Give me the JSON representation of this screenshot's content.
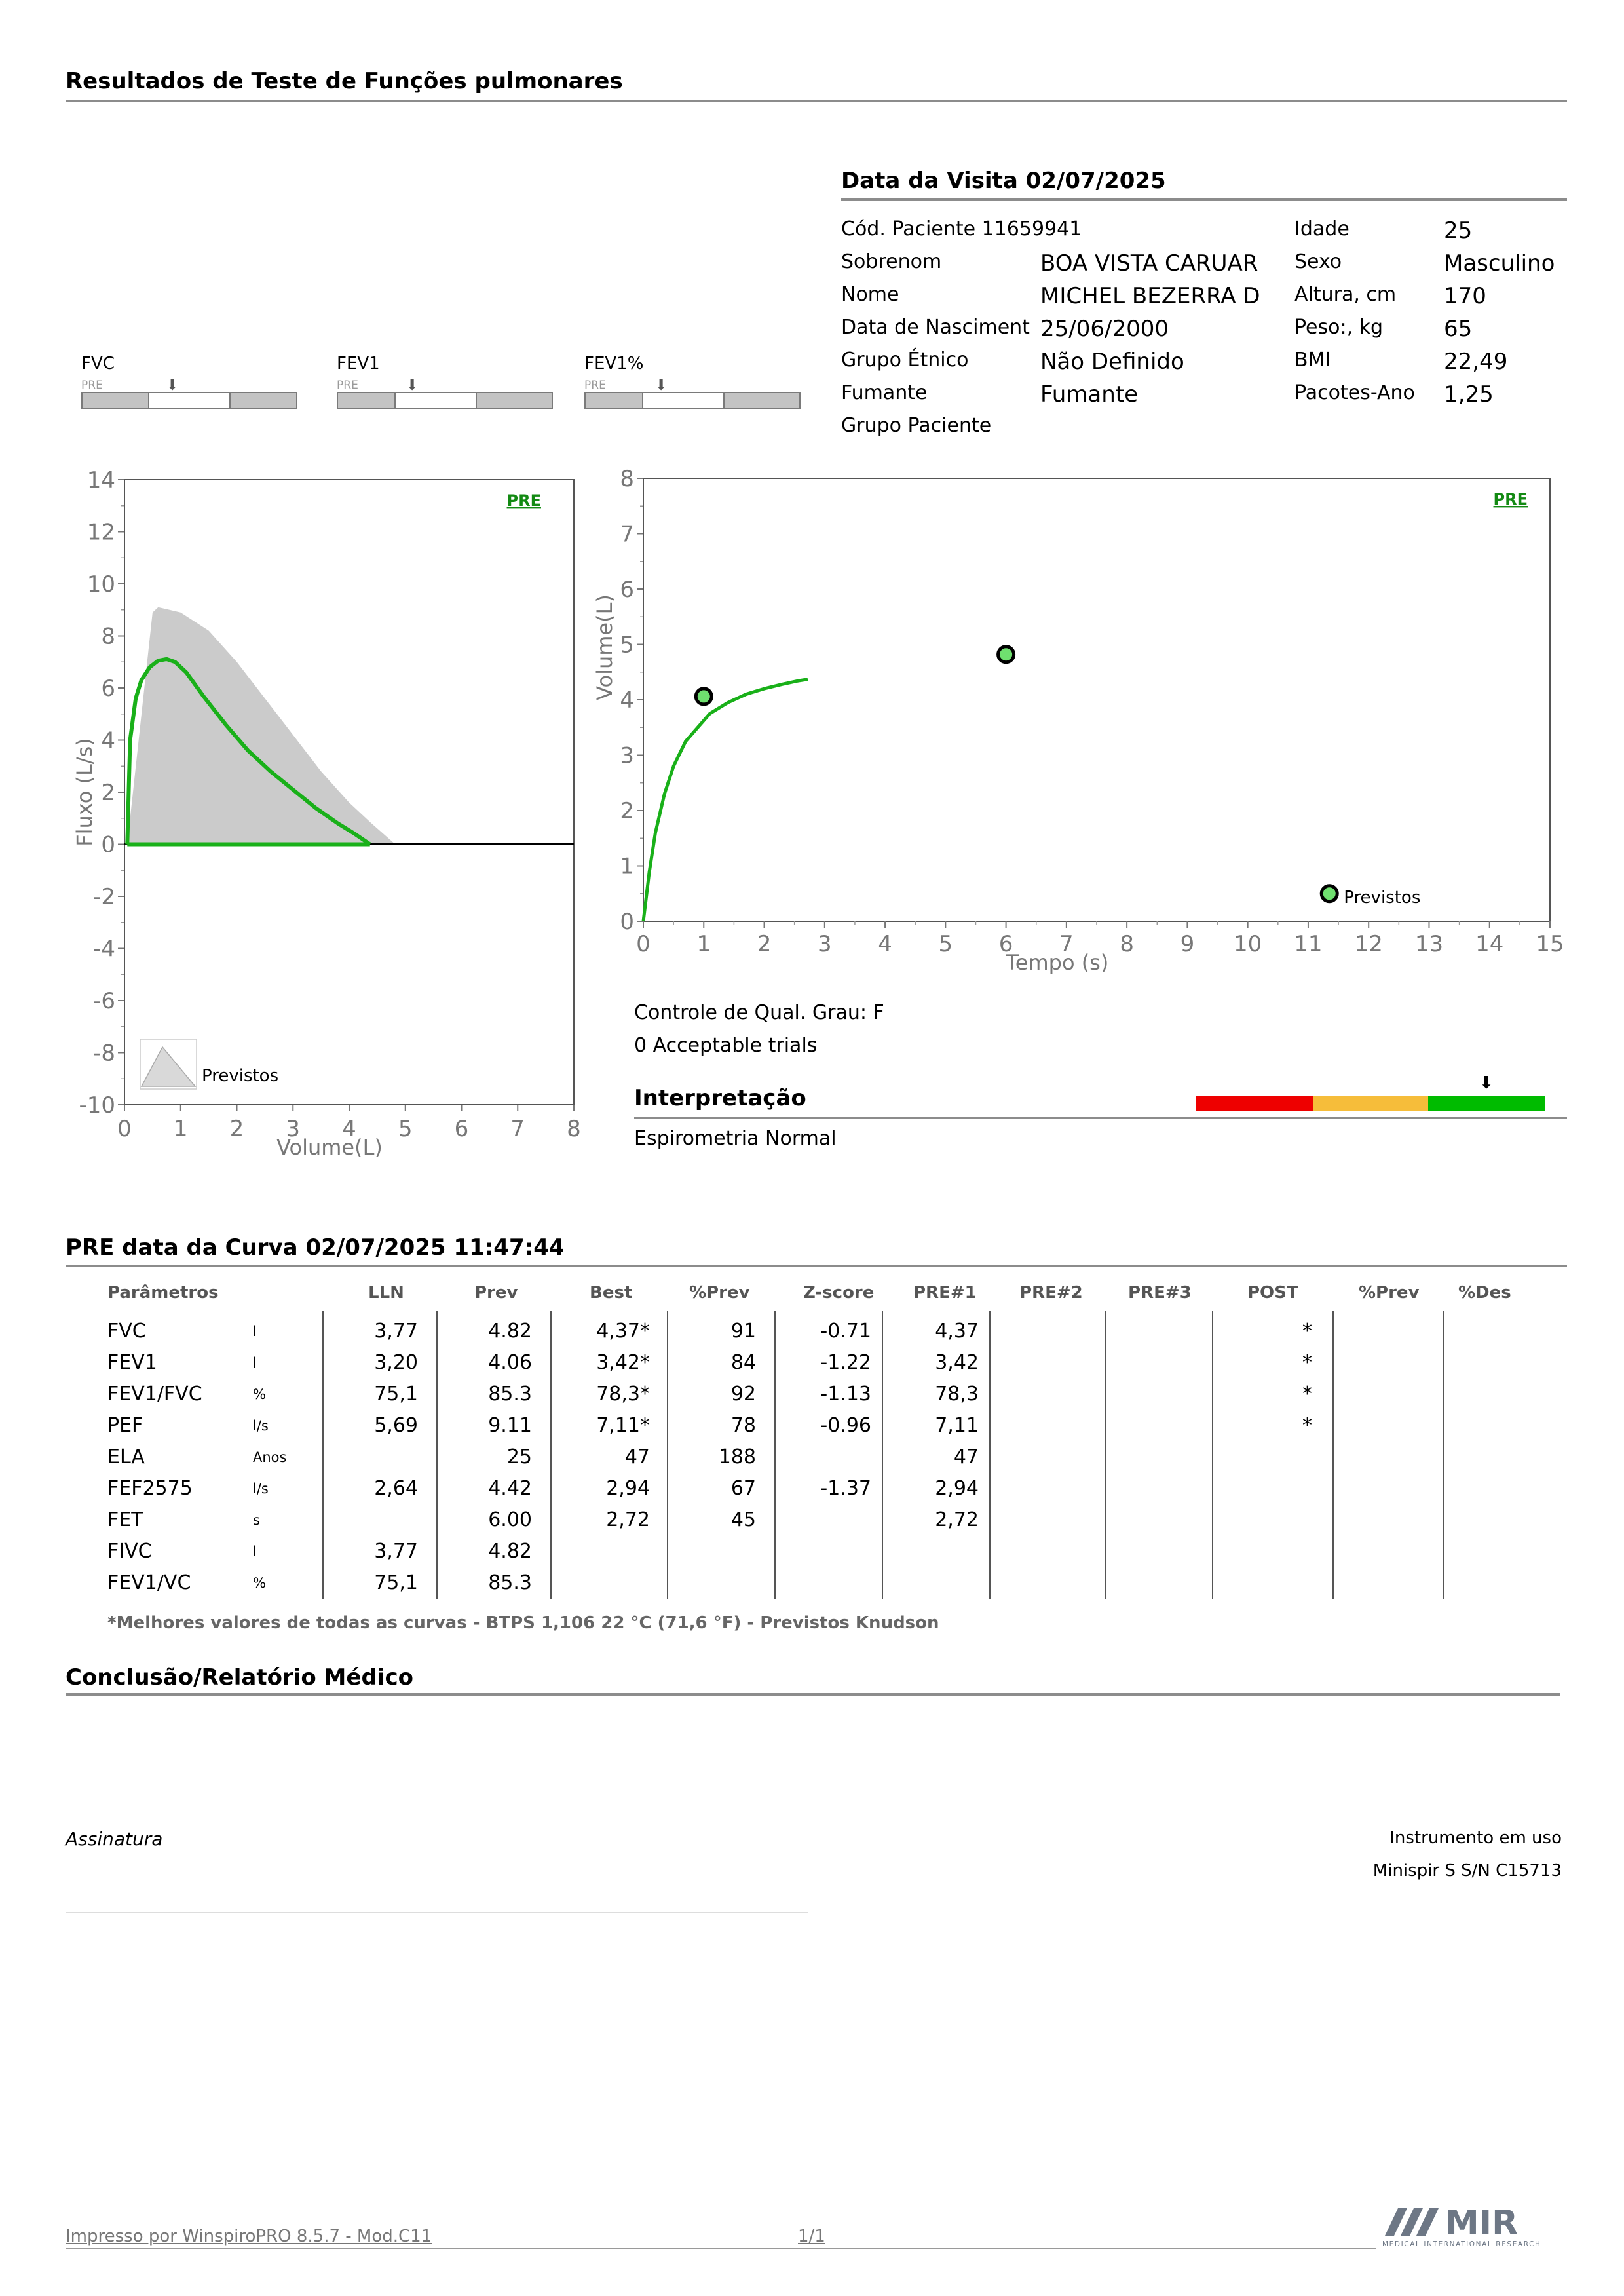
{
  "page_title": "Resultados de Teste de Funções pulmonares",
  "visit": {
    "title": "Data da Visita 02/07/2025",
    "patient_code": "Cód. Paciente 11659941",
    "rows": [
      {
        "label": "Sobrenom",
        "value": "BOA VISTA CARUAR",
        "label2": "Sexo",
        "value2": "Masculino"
      },
      {
        "label": "Nome",
        "value": "MICHEL BEZERRA D",
        "label2": "Altura, cm",
        "value2": "170"
      },
      {
        "label": "Data de Nasciment",
        "value": "25/06/2000",
        "label2": "Peso:, kg",
        "value2": "65"
      },
      {
        "label": "Grupo Étnico",
        "value": "Não Definido",
        "label2": "BMI",
        "value2": "22,49"
      },
      {
        "label": "Fumante",
        "value": "Fumante",
        "label2": "Pacotes-Ano",
        "value2": "1,25"
      },
      {
        "label": "Grupo Paciente",
        "value": "",
        "label2": "",
        "value2": ""
      }
    ],
    "age_label": "Idade",
    "age_value": "25"
  },
  "gauges": [
    {
      "label": "FVC",
      "tag": "PRE"
    },
    {
      "label": "FEV1",
      "tag": "PRE"
    },
    {
      "label": "FEV1%",
      "tag": "PRE"
    }
  ],
  "chart_data": [
    {
      "type": "line",
      "chart": "flow-volume",
      "tag": "PRE",
      "xlabel": "Volume(L)",
      "ylabel": "Fluxo (L/s)",
      "xlim": [
        0,
        8
      ],
      "ylim": [
        -10,
        14
      ],
      "xticks": [
        "0",
        "1",
        "2",
        "3",
        "4",
        "5",
        "6",
        "7",
        "8"
      ],
      "yticks": [
        "14",
        "12",
        "10",
        "8",
        "6",
        "4",
        "2",
        "0",
        "-2",
        "-4",
        "-6",
        "-8",
        "-10"
      ],
      "legend_label": "Previstos",
      "series": [
        {
          "name": "Previstos",
          "kind": "area",
          "x": [
            0.05,
            0.5,
            0.6,
            1.0,
            1.5,
            2.0,
            2.5,
            3.0,
            3.5,
            4.0,
            4.4,
            4.82
          ],
          "y": [
            0,
            8.9,
            9.1,
            8.9,
            8.2,
            7.0,
            5.6,
            4.2,
            2.8,
            1.6,
            0.8,
            0
          ]
        },
        {
          "name": "PRE",
          "x": [
            0.05,
            0.1,
            0.2,
            0.3,
            0.45,
            0.6,
            0.75,
            0.9,
            1.1,
            1.4,
            1.8,
            2.2,
            2.6,
            3.0,
            3.4,
            3.8,
            4.1,
            4.37
          ],
          "y": [
            0,
            4.0,
            5.6,
            6.3,
            6.8,
            7.05,
            7.11,
            7.0,
            6.6,
            5.7,
            4.6,
            3.6,
            2.8,
            2.1,
            1.4,
            0.8,
            0.4,
            0
          ]
        },
        {
          "name": "PRE-inspiratory",
          "x": [
            0.05,
            4.37
          ],
          "y": [
            0,
            0
          ]
        }
      ]
    },
    {
      "type": "line",
      "chart": "volume-time",
      "tag": "PRE",
      "xlabel": "Tempo (s)",
      "ylabel": "Volume(L)",
      "xlim": [
        0,
        15
      ],
      "ylim": [
        0,
        8
      ],
      "xticks": [
        "0",
        "1",
        "2",
        "3",
        "4",
        "5",
        "6",
        "7",
        "8",
        "9",
        "10",
        "11",
        "12",
        "13",
        "14",
        "15"
      ],
      "yticks": [
        "8",
        "7",
        "6",
        "5",
        "4",
        "3",
        "2",
        "1",
        "0"
      ],
      "points_label": "Previstos",
      "points": [
        {
          "x": 1.0,
          "y": 4.06
        },
        {
          "x": 6.0,
          "y": 4.82
        },
        {
          "x": 11.35,
          "y": 0.5
        }
      ],
      "series": [
        {
          "name": "PRE",
          "x": [
            0,
            0.1,
            0.2,
            0.35,
            0.5,
            0.7,
            0.9,
            1.1,
            1.4,
            1.7,
            2.0,
            2.3,
            2.55,
            2.72
          ],
          "y": [
            0,
            0.9,
            1.6,
            2.3,
            2.8,
            3.25,
            3.5,
            3.75,
            3.95,
            4.1,
            4.2,
            4.28,
            4.34,
            4.37
          ]
        }
      ]
    }
  ],
  "quality": {
    "line1": "Controle de Qual. Grau: F",
    "line2": "0 Acceptable trials"
  },
  "interpretation": {
    "title": "Interpretação",
    "text": "Espirometria Normal",
    "colors": [
      "#ee0000",
      "#f6bd3a",
      "#00bb00"
    ]
  },
  "curve": {
    "title": "PRE data da Curva 02/07/2025   11:47:44",
    "headers": [
      "Parâmetros",
      "LLN",
      "Prev",
      "Best",
      "%Prev",
      "Z-score",
      "PRE#1",
      "PRE#2",
      "PRE#3",
      "POST",
      "%Prev",
      "%Des"
    ],
    "rows": [
      {
        "param": "FVC",
        "unit": "l",
        "lln": "3,77",
        "prev": "4.82",
        "best": "4,37*",
        "pprev": "91",
        "z": "-0.71",
        "pre1": "4,37",
        "post": "*"
      },
      {
        "param": "FEV1",
        "unit": "l",
        "lln": "3,20",
        "prev": "4.06",
        "best": "3,42*",
        "pprev": "84",
        "z": "-1.22",
        "pre1": "3,42",
        "post": "*"
      },
      {
        "param": "FEV1/FVC",
        "unit": "%",
        "lln": "75,1",
        "prev": "85.3",
        "best": "78,3*",
        "pprev": "92",
        "z": "-1.13",
        "pre1": "78,3",
        "post": "*"
      },
      {
        "param": "PEF",
        "unit": "l/s",
        "lln": "5,69",
        "prev": "9.11",
        "best": "7,11*",
        "pprev": "78",
        "z": "-0.96",
        "pre1": "7,11",
        "post": "*"
      },
      {
        "param": "ELA",
        "unit": "Anos",
        "lln": "",
        "prev": "25",
        "best": "47",
        "pprev": "188",
        "z": "",
        "pre1": "47",
        "post": ""
      },
      {
        "param": "FEF2575",
        "unit": "l/s",
        "lln": "2,64",
        "prev": "4.42",
        "best": "2,94",
        "pprev": "67",
        "z": "-1.37",
        "pre1": "2,94",
        "post": ""
      },
      {
        "param": "FET",
        "unit": "s",
        "lln": "",
        "prev": "6.00",
        "best": "2,72",
        "pprev": "45",
        "z": "",
        "pre1": "2,72",
        "post": ""
      },
      {
        "param": "FIVC",
        "unit": "l",
        "lln": "3,77",
        "prev": "4.82",
        "best": "",
        "pprev": "",
        "z": "",
        "pre1": "",
        "post": ""
      },
      {
        "param": "FEV1/VC",
        "unit": "%",
        "lln": "75,1",
        "prev": "85.3",
        "best": "",
        "pprev": "",
        "z": "",
        "pre1": "",
        "post": ""
      }
    ],
    "footnote": "*Melhores valores de todas as curvas - BTPS  1,106  22 °C  (71,6 °F) - Previstos Knudson"
  },
  "conclusion_title": "Conclusão/Relatório Médico",
  "signature_label": "Assinatura",
  "instrument": {
    "label": "Instrumento em uso",
    "value": "Minispir S S/N C15713"
  },
  "footer": {
    "printed_by": "Impresso por WinspiroPRO  8.5.7 - Mod.C11",
    "page": "1/1",
    "logo_text": "MIR",
    "logo_sub": "MEDICAL INTERNATIONAL RESEARCH"
  }
}
